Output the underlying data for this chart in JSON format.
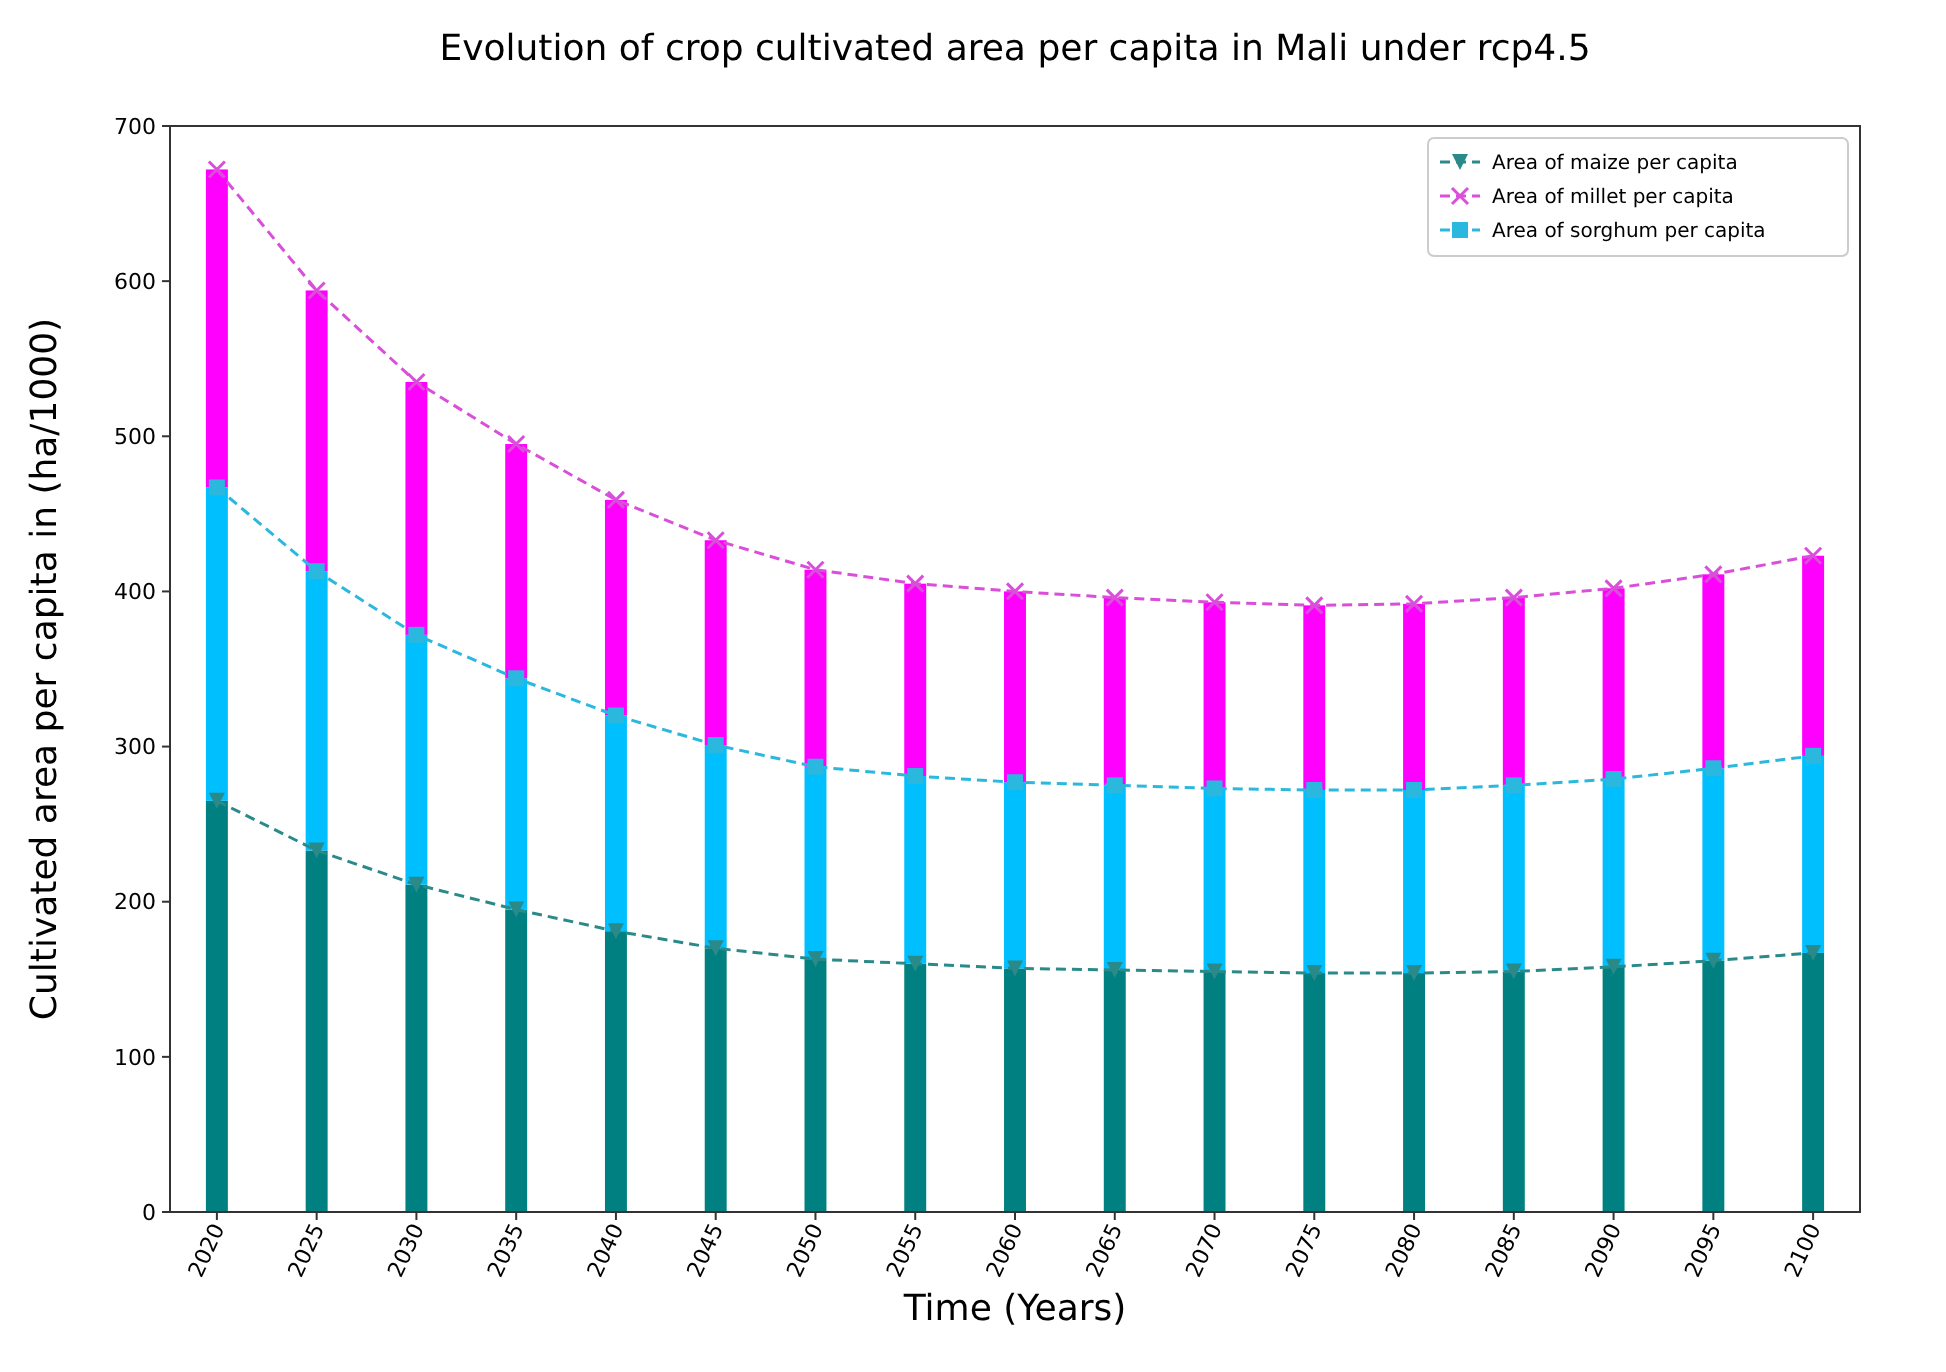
{
  "chart_data": {
    "type": "bar",
    "title": "Evolution of crop cultivated area per capita in Mali under rcp4.5",
    "xlabel": "Time (Years)",
    "ylabel": "Cultivated area per capita in (ha/1000)",
    "categories": [
      "2020",
      "2025",
      "2030",
      "2035",
      "2040",
      "2045",
      "2050",
      "2055",
      "2060",
      "2065",
      "2070",
      "2075",
      "2080",
      "2085",
      "2090",
      "2095",
      "2100"
    ],
    "stacked": true,
    "ylim": [
      0,
      700
    ],
    "yticks": [
      0,
      100,
      200,
      300,
      400,
      500,
      600,
      700
    ],
    "grid": false,
    "legend": "top right",
    "series": [
      {
        "color": "#008080",
        "values": [
          265,
          233,
          211,
          195,
          181,
          170,
          163,
          160,
          157,
          156,
          155,
          154,
          154,
          155,
          158,
          162,
          167
        ]
      },
      {
        "color": "#00bfff",
        "values": [
          202,
          180,
          161,
          149,
          139,
          131,
          124,
          121,
          120,
          119,
          118,
          118,
          118,
          120,
          121,
          124,
          127
        ]
      },
      {
        "color": "#ff00ff",
        "values": [
          205,
          181,
          163,
          151,
          139,
          132,
          127,
          124,
          123,
          121,
          120,
          119,
          120,
          121,
          123,
          125,
          129
        ]
      },
      {
        "type": "line",
        "name": "Area of maize per capita",
        "color": "#2a8a8a",
        "marker": "triangle",
        "line_style": "dashed",
        "values": [
          265,
          233,
          211,
          195,
          181,
          170,
          163,
          160,
          157,
          156,
          155,
          154,
          154,
          155,
          158,
          162,
          167
        ]
      },
      {
        "type": "line",
        "name": "Area of millet per capita",
        "color": "#d94fd9",
        "marker": "cross",
        "line_style": "dashed",
        "values": [
          672,
          594,
          535,
          495,
          459,
          433,
          414,
          405,
          400,
          396,
          393,
          391,
          392,
          396,
          402,
          411,
          423
        ]
      },
      {
        "type": "line",
        "name": "Area of sorghum per capita",
        "color": "#2bb8de",
        "marker": "square",
        "line_style": "dashed",
        "values": [
          467,
          413,
          372,
          344,
          320,
          301,
          287,
          281,
          277,
          275,
          273,
          272,
          272,
          275,
          279,
          286,
          294
        ]
      }
    ]
  }
}
